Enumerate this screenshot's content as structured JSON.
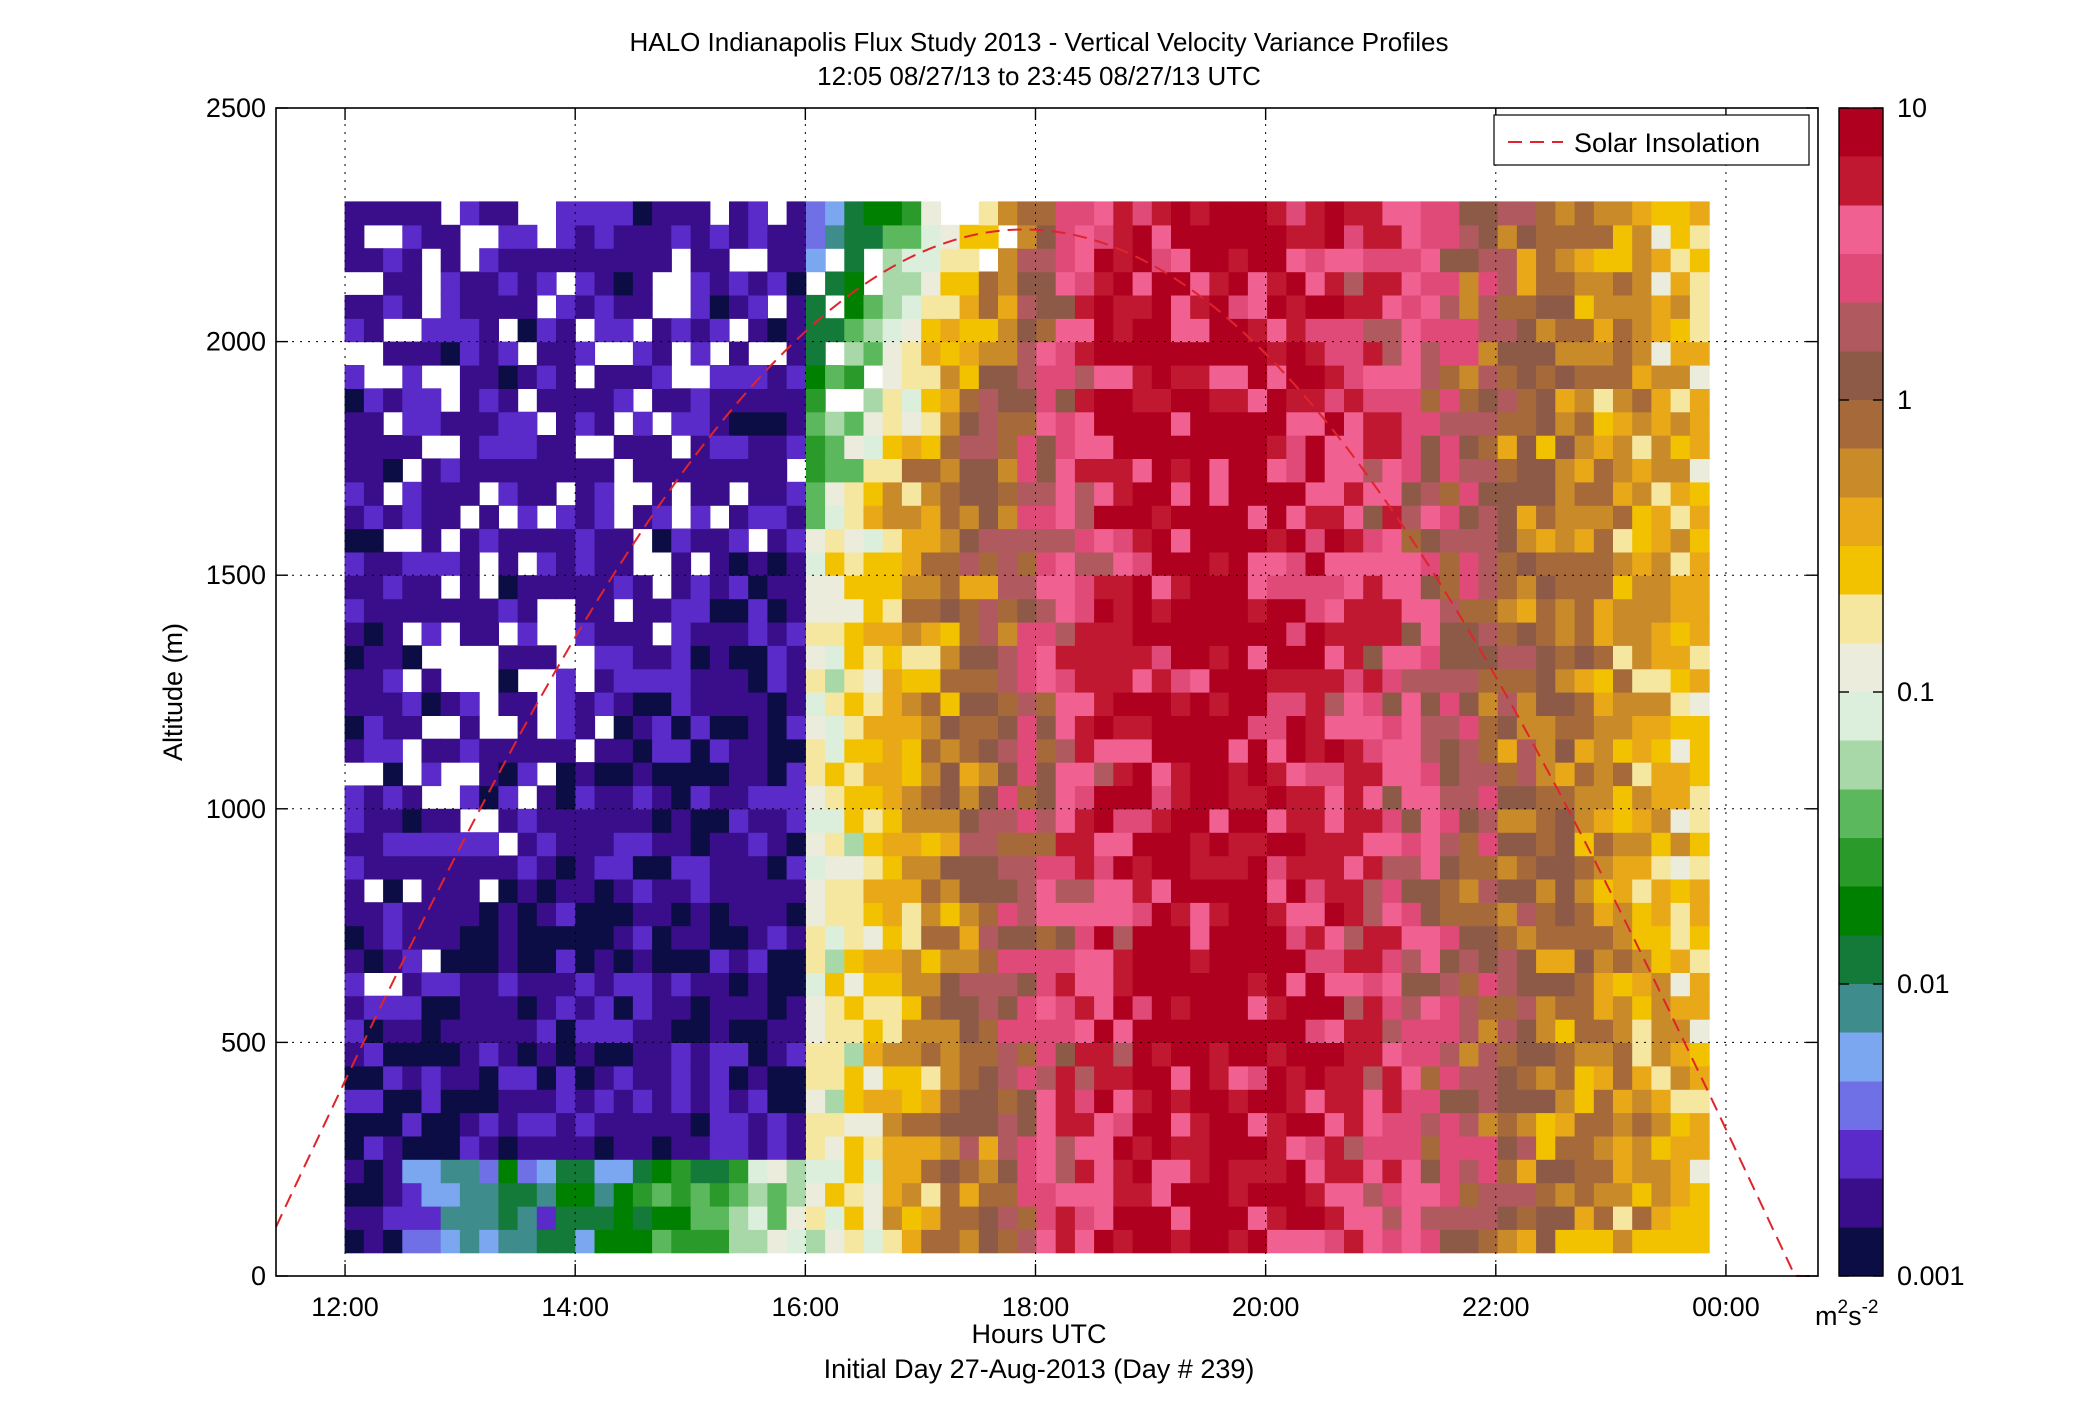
{
  "chart_data": {
    "type": "heatmap",
    "title": "HALO Indianapolis Flux Study 2013 - Vertical Velocity Variance Profiles",
    "subtitle": "12:05 08/27/13 to 23:45 08/27/13  UTC",
    "xlabel": "Hours UTC",
    "xlabel2": "Initial Day 27-Aug-2013 (Day # 239)",
    "ylabel": "Altitude (m)",
    "xlim": [
      11.4,
      24.8
    ],
    "ylim": [
      0,
      2500
    ],
    "x_ticks": [
      {
        "value": 12,
        "label": "12:00"
      },
      {
        "value": 14,
        "label": "14:00"
      },
      {
        "value": 16,
        "label": "16:00"
      },
      {
        "value": 18,
        "label": "18:00"
      },
      {
        "value": 20,
        "label": "20:00"
      },
      {
        "value": 22,
        "label": "22:00"
      },
      {
        "value": 24,
        "label": "00:00"
      }
    ],
    "y_ticks": [
      {
        "value": 0,
        "label": "0"
      },
      {
        "value": 500,
        "label": "500"
      },
      {
        "value": 1000,
        "label": "1000"
      },
      {
        "value": 1500,
        "label": "1500"
      },
      {
        "value": 2000,
        "label": "2000"
      },
      {
        "value": 2500,
        "label": "2500"
      }
    ],
    "grid": true,
    "colorbar": {
      "scale": "log",
      "range": [
        0.001,
        10
      ],
      "ticks": [
        {
          "value": 0.001,
          "label": "0.001"
        },
        {
          "value": 0.01,
          "label": "0.01"
        },
        {
          "value": 0.1,
          "label": "0.1"
        },
        {
          "value": 1,
          "label": "1"
        },
        {
          "value": 10,
          "label": "10"
        }
      ],
      "units": "m",
      "units_sup1": "2",
      "units_mid": "s",
      "units_sup2": "-2"
    },
    "legend": {
      "position": "top-right",
      "entries": [
        {
          "name": "Solar Insolation",
          "color": "#e0242c",
          "style": "dashed"
        }
      ]
    },
    "colormap": [
      "#0d0d45",
      "#3a0e8a",
      "#5a2bc8",
      "#6f6fe6",
      "#7ba6f0",
      "#3e8c8c",
      "#137a3a",
      "#008000",
      "#2a9a2a",
      "#5cb85c",
      "#a8d8a8",
      "#dcefdc",
      "#ececdc",
      "#f5e6a0",
      "#f2c200",
      "#e8a817",
      "#c98a2a",
      "#a66a3a",
      "#8e5a48",
      "#b05a60",
      "#e04a78",
      "#f06090",
      "#c01830",
      "#b00020"
    ],
    "time_columns_hours": [
      12.08,
      23.75
    ],
    "column_width_hours": 0.167,
    "altitude_gates_m": [
      75,
      2275
    ],
    "gate_height_m": 50,
    "values_m2s-2": [
      [
        0.0025,
        0.0012,
        0.0025,
        0.003,
        0.004,
        0.005,
        0.006,
        0.008,
        0.01,
        0.009,
        0.008,
        0.009,
        0.01,
        0.012,
        0.014,
        0.017,
        0.02,
        0.025,
        0.03,
        0.04,
        0.06,
        0.08,
        0.1,
        0.12,
        0.14,
        0.18,
        0.22,
        0.3,
        0.4,
        0.55,
        0.7,
        0.9,
        1.1,
        1.4,
        1.8,
        2.3,
        3.0,
        3.9,
        4.8,
        5.6,
        6.6,
        7.5,
        8.5,
        9.4,
        9.2,
        8.5,
        7.8,
        6.9,
        6.2,
        5.4,
        4.6,
        3.9,
        3.3,
        2.7,
        2.2,
        1.8,
        1.5,
        1.3,
        1.1,
        0.94,
        0.81,
        0.69,
        0.6,
        0.52,
        0.46,
        0.4,
        0.35,
        0.3,
        0.26
      ]
    ],
    "solar_insolation_curve": {
      "peak_time_hours": 18.0,
      "peak_altitude_m": 2240,
      "zero_crossing_times_hours": [
        11.2,
        24.6
      ]
    }
  }
}
